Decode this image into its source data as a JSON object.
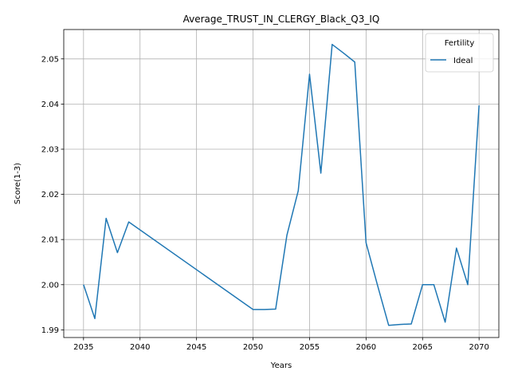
{
  "chart_data": {
    "type": "line",
    "title": "Average_TRUST_IN_CLERGY_Black_Q3_IQ",
    "xlabel": "Years",
    "ylabel": "Score(1-3)",
    "xlim": [
      2033.25,
      2071.75
    ],
    "ylim": [
      1.9883,
      2.0565
    ],
    "xticks": [
      2035,
      2040,
      2045,
      2050,
      2055,
      2060,
      2065,
      2070
    ],
    "yticks": [
      1.99,
      2.0,
      2.01,
      2.02,
      2.03,
      2.04,
      2.05
    ],
    "ytick_labels": [
      "1.99",
      "2.00",
      "2.01",
      "2.02",
      "2.03",
      "2.04",
      "2.05"
    ],
    "grid": true,
    "legend": {
      "title": "Fertility",
      "position": "top-right"
    },
    "series": [
      {
        "name": "Ideal",
        "color": "#1f77b4",
        "x": [
          2035,
          2036,
          2037,
          2038,
          2039,
          2050,
          2051,
          2052,
          2053,
          2054,
          2055,
          2056,
          2057,
          2058,
          2059,
          2060,
          2061,
          2062,
          2063,
          2064,
          2065,
          2066,
          2067,
          2068,
          2069,
          2070
        ],
        "y": [
          2.0,
          1.9925,
          2.0147,
          2.0071,
          2.0139,
          1.9945,
          1.9945,
          1.9946,
          2.011,
          2.0208,
          2.0466,
          2.0247,
          2.0532,
          2.0513,
          2.0493,
          2.0093,
          2.0,
          1.991,
          1.9912,
          1.9913,
          2.0,
          2.0,
          1.9917,
          2.0081,
          2.0,
          2.0397
        ]
      }
    ]
  }
}
